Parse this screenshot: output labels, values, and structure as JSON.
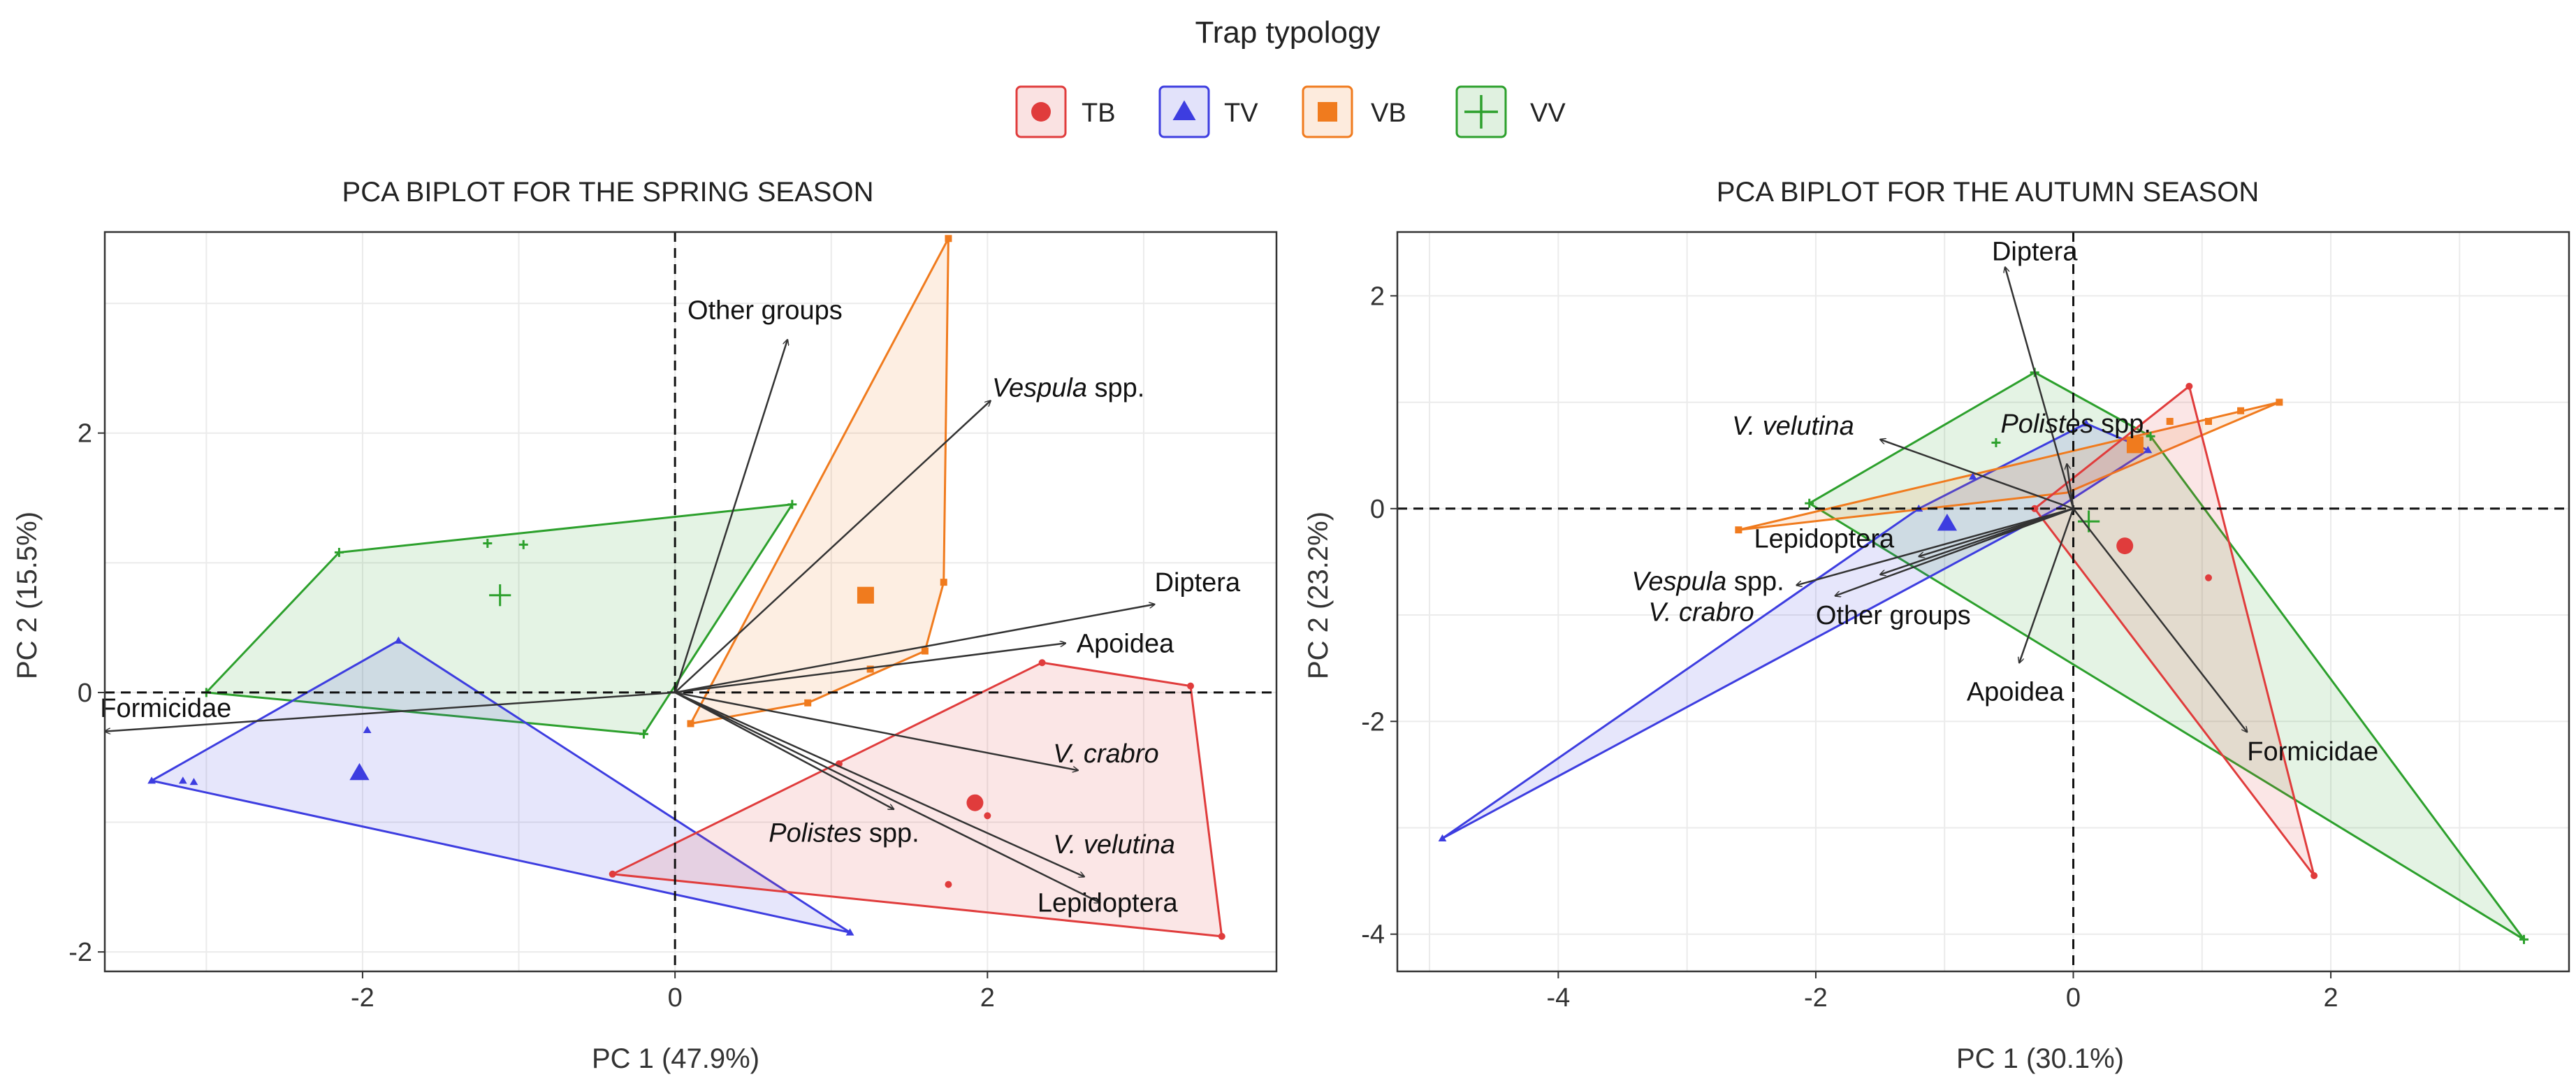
{
  "legend": {
    "title": "Trap typology",
    "entries": [
      {
        "key": "TB",
        "label": "TB",
        "color": "#e03c3c",
        "shape": "circle"
      },
      {
        "key": "TV",
        "label": "TV",
        "color": "#3d3de0",
        "shape": "triangle"
      },
      {
        "key": "VB",
        "label": "VB",
        "color": "#f07b1e",
        "shape": "square"
      },
      {
        "key": "VV",
        "label": "VV",
        "color": "#2ca02c",
        "shape": "plus"
      }
    ]
  },
  "chart_data": [
    {
      "type": "scatter",
      "subtype": "pca-biplot",
      "title": "PCA BIPLOT FOR THE SPRING SEASON",
      "xlabel": "PC 1 (47.9%)",
      "ylabel": "PC 2 (15.5%)",
      "xlim": [
        -3.65,
        3.85
      ],
      "ylim": [
        -2.15,
        3.55
      ],
      "xticks": [
        -2,
        0,
        2
      ],
      "yticks": [
        -2,
        0,
        2
      ],
      "grid": true,
      "reference_lines": {
        "x": 0,
        "y": 0
      },
      "groups": [
        {
          "key": "VV",
          "hull": [
            [
              -3.0,
              0.0
            ],
            [
              -2.15,
              1.08
            ],
            [
              0.75,
              1.45
            ],
            [
              -0.2,
              -0.32
            ]
          ],
          "points": [
            [
              -2.15,
              1.08
            ],
            [
              -1.2,
              1.15
            ],
            [
              -0.97,
              1.14
            ],
            [
              0.75,
              1.45
            ],
            [
              -0.2,
              -0.32
            ],
            [
              -3.0,
              0.0
            ]
          ],
          "centroid": [
            -1.12,
            0.75
          ]
        },
        {
          "key": "TV",
          "hull": [
            [
              -3.35,
              -0.68
            ],
            [
              -1.77,
              0.4
            ],
            [
              1.12,
              -1.85
            ]
          ],
          "points": [
            [
              -3.35,
              -0.68
            ],
            [
              -3.15,
              -0.68
            ],
            [
              -3.08,
              -0.69
            ],
            [
              -1.77,
              0.4
            ],
            [
              -1.97,
              -0.29
            ],
            [
              1.12,
              -1.85
            ]
          ],
          "centroid": [
            -2.02,
            -0.62
          ]
        },
        {
          "key": "VB",
          "hull": [
            [
              0.1,
              -0.24
            ],
            [
              1.75,
              3.5
            ],
            [
              1.72,
              0.85
            ],
            [
              1.6,
              0.32
            ],
            [
              0.85,
              -0.08
            ]
          ],
          "points": [
            [
              0.1,
              -0.24
            ],
            [
              1.75,
              3.5
            ],
            [
              1.72,
              0.85
            ],
            [
              1.6,
              0.32
            ],
            [
              1.25,
              0.18
            ],
            [
              0.85,
              -0.08
            ]
          ],
          "centroid": [
            1.22,
            0.75
          ]
        },
        {
          "key": "TB",
          "hull": [
            [
              -0.4,
              -1.4
            ],
            [
              2.35,
              0.23
            ],
            [
              3.3,
              0.05
            ],
            [
              3.5,
              -1.88
            ]
          ],
          "points": [
            [
              -0.4,
              -1.4
            ],
            [
              2.35,
              0.23
            ],
            [
              3.3,
              0.05
            ],
            [
              3.5,
              -1.88
            ],
            [
              2.0,
              -0.95
            ],
            [
              1.75,
              -1.48
            ],
            [
              1.05,
              -0.55
            ]
          ],
          "centroid": [
            1.92,
            -0.85
          ]
        }
      ],
      "loadings": [
        {
          "label": "Other groups",
          "x": 0.72,
          "y": 2.72,
          "label_pos": [
            0.08,
            2.95
          ],
          "anchor": "start"
        },
        {
          "label": "Vespula spp.",
          "x": 2.02,
          "y": 2.25,
          "label_pos": [
            2.03,
            2.35
          ],
          "anchor": "start",
          "italic": "Vespula",
          "rest": " spp."
        },
        {
          "label": "Diptera",
          "x": 3.07,
          "y": 0.68,
          "label_pos": [
            3.07,
            0.85
          ],
          "anchor": "start"
        },
        {
          "label": "Apoidea",
          "x": 2.5,
          "y": 0.38,
          "label_pos": [
            2.57,
            0.38
          ],
          "anchor": "start"
        },
        {
          "label": "Formicidae",
          "x": -3.65,
          "y": -0.3,
          "label_pos": [
            -3.68,
            -0.12
          ],
          "anchor": "start"
        },
        {
          "label": "V. crabro",
          "x": 2.58,
          "y": -0.6,
          "label_pos": [
            2.42,
            -0.47
          ],
          "anchor": "start",
          "italic": "V. crabro",
          "rest": ""
        },
        {
          "label": "Polistes spp.",
          "x": 1.4,
          "y": -0.9,
          "label_pos": [
            0.6,
            -1.08
          ],
          "anchor": "start",
          "italic": "Polistes",
          "rest": " spp."
        },
        {
          "label": "V. velutina",
          "x": 2.62,
          "y": -1.42,
          "label_pos": [
            2.42,
            -1.17
          ],
          "anchor": "start",
          "italic": "V. velutina",
          "rest": ""
        },
        {
          "label": "Lepidoptera",
          "x": 2.72,
          "y": -1.62,
          "label_pos": [
            2.32,
            -1.62
          ],
          "anchor": "start"
        }
      ]
    },
    {
      "type": "scatter",
      "subtype": "pca-biplot",
      "title": "PCA BIPLOT FOR THE AUTUMN SEASON",
      "xlabel": "PC 1 (30.1%)",
      "ylabel": "PC 2 (23.2%)",
      "xlim": [
        -5.25,
        3.85
      ],
      "ylim": [
        -4.35,
        2.6
      ],
      "xticks": [
        -4,
        -2,
        0,
        2
      ],
      "yticks": [
        -4,
        -2,
        0,
        2
      ],
      "grid": true,
      "reference_lines": {
        "x": 0,
        "y": 0
      },
      "groups": [
        {
          "key": "VV",
          "hull": [
            [
              -2.05,
              0.05
            ],
            [
              -0.3,
              1.28
            ],
            [
              0.6,
              0.68
            ],
            [
              3.5,
              -4.05
            ]
          ],
          "points": [
            [
              -2.05,
              0.05
            ],
            [
              -0.3,
              1.28
            ],
            [
              0.6,
              0.68
            ],
            [
              3.5,
              -4.05
            ],
            [
              -0.6,
              0.62
            ]
          ],
          "centroid": [
            0.12,
            -0.12
          ]
        },
        {
          "key": "TV",
          "hull": [
            [
              -4.9,
              -3.1
            ],
            [
              -1.2,
              0.0
            ],
            [
              0.1,
              0.8
            ],
            [
              0.58,
              0.55
            ],
            [
              -0.1,
              0.02
            ]
          ],
          "points": [
            [
              -4.9,
              -3.1
            ],
            [
              -1.2,
              0.0
            ],
            [
              -0.78,
              0.3
            ],
            [
              0.1,
              0.8
            ],
            [
              0.58,
              0.55
            ]
          ],
          "centroid": [
            -0.98,
            -0.14
          ]
        },
        {
          "key": "VB",
          "hull": [
            [
              -2.6,
              -0.2
            ],
            [
              1.6,
              1.0
            ],
            [
              -0.05,
              0.15
            ]
          ],
          "points": [
            [
              -2.6,
              -0.2
            ],
            [
              1.6,
              1.0
            ],
            [
              1.3,
              0.92
            ],
            [
              1.05,
              0.82
            ],
            [
              0.75,
              0.82
            ]
          ],
          "centroid": [
            0.48,
            0.6
          ]
        },
        {
          "key": "TB",
          "hull": [
            [
              -0.3,
              0.0
            ],
            [
              0.9,
              1.15
            ],
            [
              1.87,
              -3.45
            ]
          ],
          "points": [
            [
              -0.3,
              0.0
            ],
            [
              0.9,
              1.15
            ],
            [
              1.87,
              -3.45
            ],
            [
              1.05,
              -0.65
            ]
          ],
          "centroid": [
            0.4,
            -0.35
          ]
        }
      ],
      "loadings": [
        {
          "label": "Diptera",
          "x": -0.53,
          "y": 2.27,
          "label_pos": [
            -0.3,
            2.42
          ],
          "anchor": "middle"
        },
        {
          "label": "Polistes spp.",
          "x": -0.05,
          "y": 0.42,
          "label_pos": [
            0.02,
            0.8
          ],
          "anchor": "middle",
          "italic": "Polistes",
          "rest": " spp."
        },
        {
          "label": "V. velutina",
          "x": -1.5,
          "y": 0.65,
          "label_pos": [
            -2.65,
            0.78
          ],
          "anchor": "start",
          "italic": "V. velutina",
          "rest": ""
        },
        {
          "label": "Lepidoptera",
          "x": -1.2,
          "y": -0.45,
          "label_pos": [
            -2.48,
            -0.28
          ],
          "anchor": "start"
        },
        {
          "label": "Vespula spp.",
          "x": -2.15,
          "y": -0.72,
          "label_pos": [
            -3.43,
            -0.68
          ],
          "anchor": "start",
          "italic": "Vespula",
          "rest": " spp."
        },
        {
          "label": "V. crabro",
          "x": -1.85,
          "y": -0.82,
          "label_pos": [
            -3.3,
            -0.97
          ],
          "anchor": "start",
          "italic": "V. crabro",
          "rest": ""
        },
        {
          "label": "Other groups",
          "x": -1.5,
          "y": -0.62,
          "label_pos": [
            -2.0,
            -1.0
          ],
          "anchor": "start"
        },
        {
          "label": "Apoidea",
          "x": -0.42,
          "y": -1.45,
          "label_pos": [
            -0.45,
            -1.72
          ],
          "anchor": "middle"
        },
        {
          "label": "Formicidae",
          "x": 1.35,
          "y": -2.1,
          "label_pos": [
            1.35,
            -2.28
          ],
          "anchor": "start"
        }
      ]
    }
  ]
}
